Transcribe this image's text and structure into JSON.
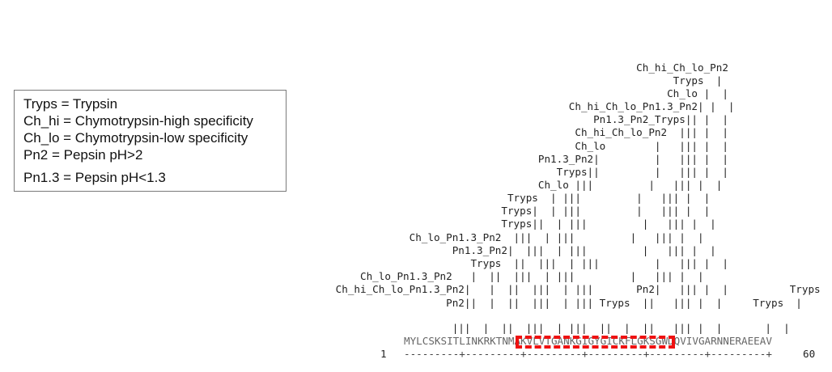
{
  "legend": {
    "entries": [
      "Tryps = Trypsin",
      "Ch_hi = Chymotrypsin-high specificity",
      "Ch_lo = Chymotrypsin-low specificity",
      "Pn2 = Pepsin pH>2",
      "Pn1.3 = Pepsin pH<1.3"
    ]
  },
  "cleavage_map": {
    "label_rows": [
      "                                                         Ch_hi_Ch_lo_Pn2",
      "                                                               Tryps  |",
      "                                                              Ch_lo |  |",
      "                                              Ch_hi_Ch_lo_Pn1.3_Pn2| |  |",
      "                                                  Pn1.3_Pn2_Tryps|| |  |",
      "                                               Ch_hi_Ch_lo_Pn2  ||| |  |",
      "                                               Ch_lo        |   ||| |  |",
      "                                         Pn1.3_Pn2|         |   ||| |  |",
      "                                            Tryps||         |   ||| |  |",
      "                                         Ch_lo |||         |   ||| |  |",
      "                                    Tryps  | |||         |   ||| |  |",
      "                                   Tryps|  | |||         |   ||| |  |",
      "                                   Tryps||  | |||         |   ||| |  |",
      "                    Ch_lo_Pn1.3_Pn2  |||  | |||         |   ||| |  |",
      "                           Pn1.3_Pn2|  |||  | |||         |   ||| |  |",
      "                              Tryps  ||  |||  | |||         |   ||| |  |",
      "            Ch_lo_Pn1.3_Pn2   |  ||  |||  | |||         |   ||| |  |",
      "        Ch_hi_Ch_lo_Pn1.3_Pn2|   |  ||  |||  | |||       Pn2|   ||| |  |          Tryps",
      "                          Pn2||  |  ||  |||  | ||| Tryps  ||   ||| |  |     Tryps  |"
    ],
    "tick_row": "                           |||  |  ||  |||  | |||  ||  |  ||   ||| |  |       |  |",
    "sequence": "MYLCSKSITLINKRKTNMAKVLVTGANKGIGYGICKFLGKSGWDQVIVGARNNERAEEAV",
    "ruler": "---------+---------+---------+---------+---------+---------+",
    "start_position": "1",
    "end_position": "60"
  }
}
